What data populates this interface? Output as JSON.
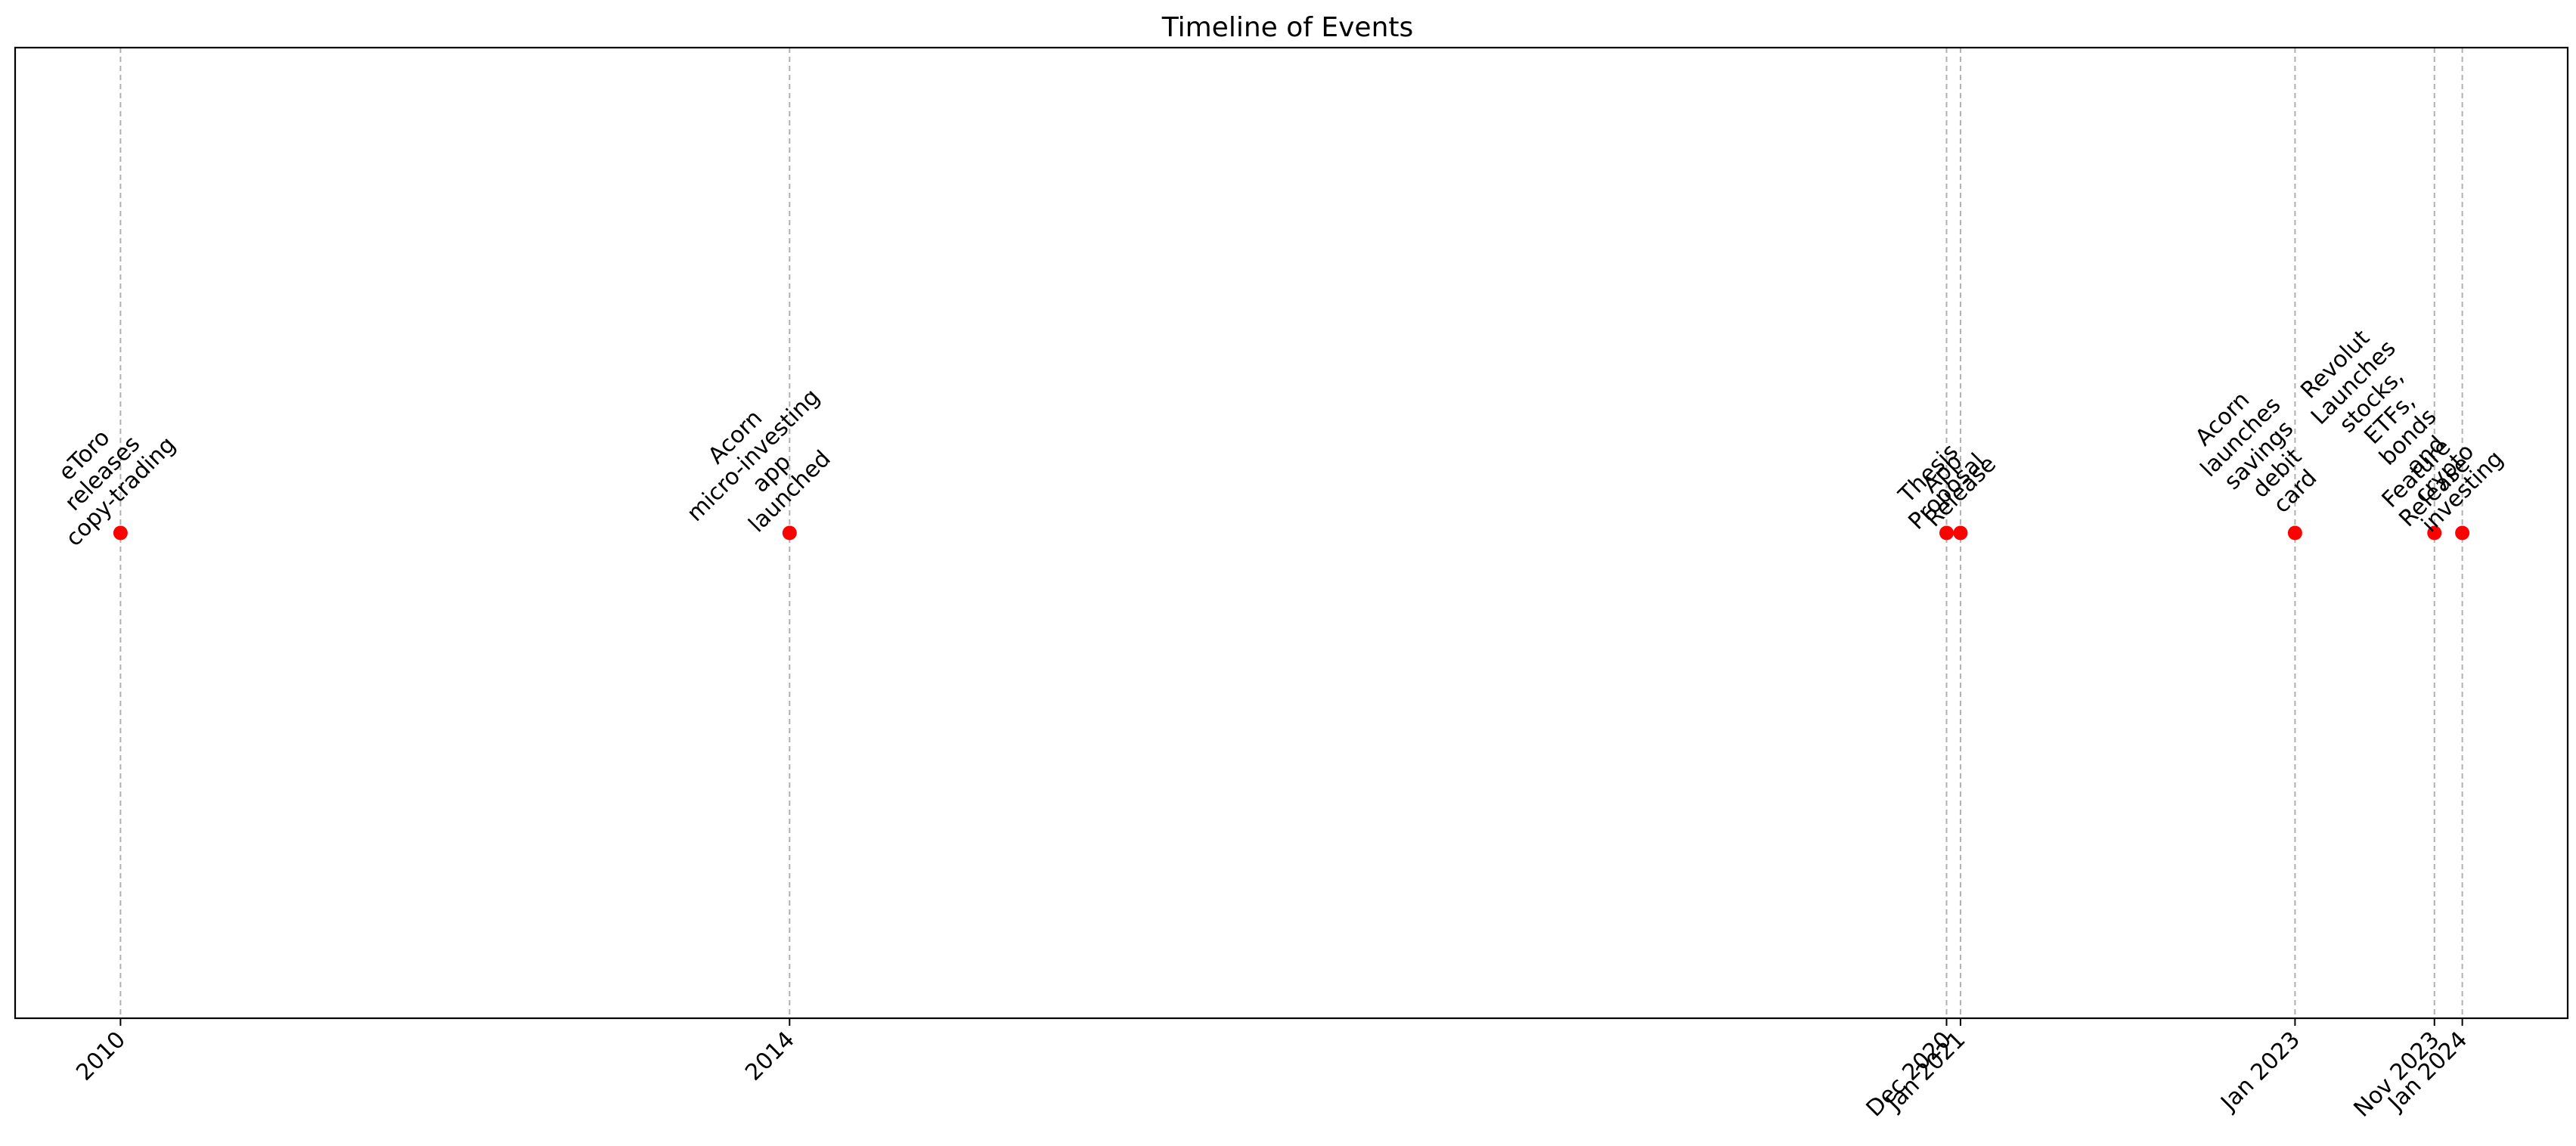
{
  "chart_data": {
    "type": "scatter",
    "title": "Timeline of Events",
    "xlabel": "",
    "ylabel": "",
    "grid": false,
    "marker_color": "#ff0000",
    "vline_color": "#b0b0b0",
    "x_tick_labels": [
      "2010",
      "2014",
      "Dec 2020",
      "Jan 2021",
      "Jan 2023",
      "Nov 2023",
      "Jan 2024"
    ],
    "events": [
      {
        "date": "2010-01",
        "tick": "2010",
        "label_lines": [
          "eToro",
          "releases",
          "copy-trading"
        ]
      },
      {
        "date": "2014-01",
        "tick": "2014",
        "label_lines": [
          "Acorn",
          "micro-investing",
          "app",
          "launched"
        ]
      },
      {
        "date": "2020-12",
        "tick": "Dec 2020",
        "label_lines": [
          "Thesis",
          "Proposal"
        ]
      },
      {
        "date": "2021-01",
        "tick": "Jan 2021",
        "label_lines": [
          "App",
          "Release"
        ]
      },
      {
        "date": "2023-01",
        "tick": "Jan 2023",
        "label_lines": [
          "Acorn",
          "launches",
          "savings",
          "debit",
          "card"
        ]
      },
      {
        "date": "2023-11",
        "tick": "Nov 2023",
        "label_lines": [
          "Feature",
          "Release"
        ]
      },
      {
        "date": "2024-01",
        "tick": "Jan 2024",
        "label_lines": [
          "Revolut",
          "Launches",
          "stocks,",
          "ETFs,",
          "bonds",
          "and",
          "crypto",
          "investing"
        ]
      }
    ]
  }
}
